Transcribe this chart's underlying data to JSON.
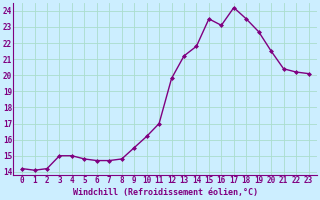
{
  "x": [
    0,
    1,
    2,
    3,
    4,
    5,
    6,
    7,
    8,
    9,
    10,
    11,
    12,
    13,
    14,
    15,
    16,
    17,
    18,
    19,
    20,
    21,
    22,
    23
  ],
  "y": [
    14.2,
    14.1,
    14.2,
    15.0,
    15.0,
    14.8,
    14.7,
    14.7,
    14.8,
    15.5,
    16.2,
    17.0,
    19.8,
    21.2,
    21.8,
    23.5,
    23.1,
    24.2,
    23.5,
    22.7,
    21.5,
    20.4,
    20.2,
    20.1
  ],
  "line_color": "#800080",
  "marker": "D",
  "marker_size": 2.0,
  "bg_color": "#cceeff",
  "grid_color": "#aaddcc",
  "ylim_min": 13.8,
  "ylim_max": 24.5,
  "yticks": [
    14,
    15,
    16,
    17,
    18,
    19,
    20,
    21,
    22,
    23,
    24
  ],
  "xlabel": "Windchill (Refroidissement éolien,°C)",
  "line_width": 1.0,
  "tick_fontsize": 5.5,
  "xlabel_fontsize": 6.0
}
